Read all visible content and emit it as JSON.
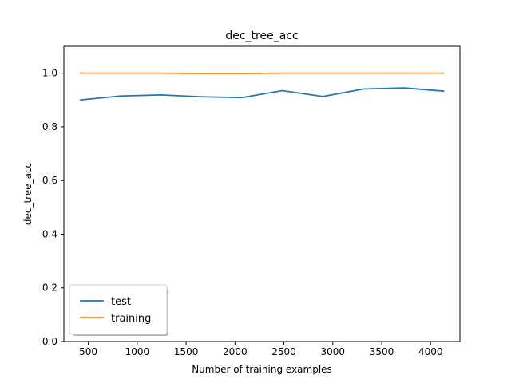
{
  "chart_data": {
    "type": "line",
    "title": "dec_tree_acc",
    "xlabel": "Number of training examples",
    "ylabel": "dec_tree_acc",
    "xlim": [
      250,
      4300
    ],
    "ylim": [
      0.0,
      1.1
    ],
    "xticks": [
      500,
      1000,
      1500,
      2000,
      2500,
      3000,
      3500,
      4000
    ],
    "yticks": [
      0.0,
      0.2,
      0.4,
      0.6,
      0.8,
      1.0
    ],
    "x": [
      414,
      828,
      1242,
      1656,
      2070,
      2484,
      2898,
      3312,
      3726,
      4140
    ],
    "series": [
      {
        "name": "test",
        "color": "#1f77b4",
        "values": [
          0.9,
          0.915,
          0.919,
          0.912,
          0.909,
          0.935,
          0.913,
          0.941,
          0.945,
          0.933
        ]
      },
      {
        "name": "training",
        "color": "#ff7f0e",
        "values": [
          1.0,
          1.0,
          1.0,
          0.999,
          0.999,
          1.0,
          1.0,
          1.0,
          1.0,
          1.0
        ]
      }
    ],
    "grid": false,
    "legend_position": "lower-left"
  }
}
